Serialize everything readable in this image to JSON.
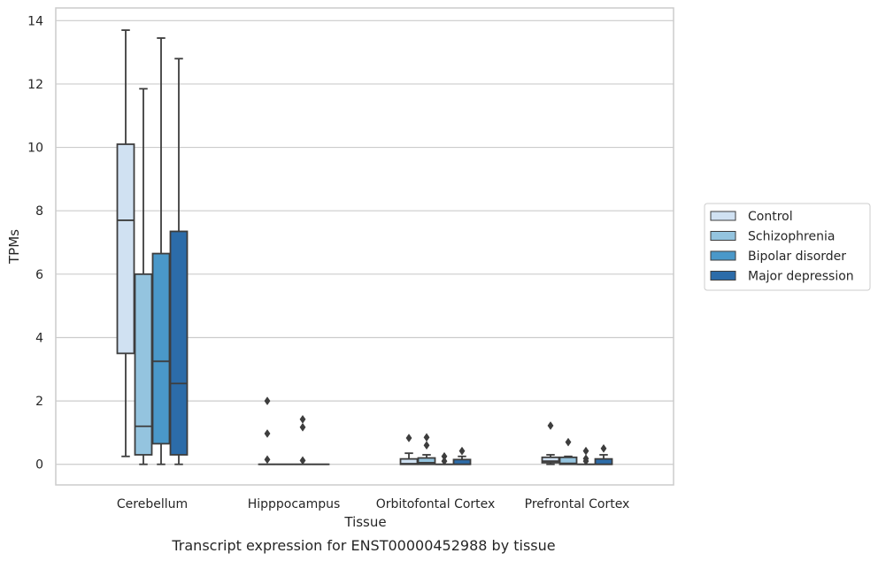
{
  "chart_data": {
    "type": "box",
    "title": "",
    "caption": "Transcript expression for ENST00000452988 by tissue",
    "xlabel": "Tissue",
    "ylabel": "TPMs",
    "ylim": [
      -0.65,
      14.4
    ],
    "yticks": [
      0,
      2,
      4,
      6,
      8,
      10,
      12,
      14
    ],
    "grid": "horizontal",
    "legend_position": "right",
    "categories": [
      "Cerebellum",
      "Hipppocampus",
      "Orbitofontal Cortex",
      "Prefrontal Cortex"
    ],
    "series": [
      {
        "name": "Control",
        "color": "#d0e1f2",
        "boxes": [
          {
            "whislo": 0.25,
            "q1": 3.5,
            "med": 7.7,
            "q3": 10.1,
            "whishi": 13.7,
            "fliers": []
          },
          {
            "whislo": 0,
            "q1": 0,
            "med": 0,
            "q3": 0,
            "whishi": 0,
            "fliers": [
              0.15,
              0.97,
              2.0
            ]
          },
          {
            "whislo": 0,
            "q1": 0,
            "med": 0.02,
            "q3": 0.17,
            "whishi": 0.35,
            "fliers": [
              0.83
            ]
          },
          {
            "whislo": 0,
            "q1": 0.05,
            "med": 0.1,
            "q3": 0.22,
            "whishi": 0.3,
            "fliers": [
              1.22
            ]
          }
        ]
      },
      {
        "name": "Schizophrenia",
        "color": "#94c4df",
        "boxes": [
          {
            "whislo": 0,
            "q1": 0.3,
            "med": 1.2,
            "q3": 6.0,
            "whishi": 11.85,
            "fliers": []
          },
          {
            "whislo": 0,
            "q1": 0,
            "med": 0,
            "q3": 0,
            "whishi": 0,
            "fliers": []
          },
          {
            "whislo": 0,
            "q1": 0,
            "med": 0.05,
            "q3": 0.2,
            "whishi": 0.3,
            "fliers": [
              0.6,
              0.85
            ]
          },
          {
            "whislo": 0,
            "q1": 0,
            "med": 0.03,
            "q3": 0.22,
            "whishi": 0.25,
            "fliers": [
              0.7
            ]
          }
        ]
      },
      {
        "name": "Bipolar disorder",
        "color": "#4a98c9",
        "boxes": [
          {
            "whislo": 0,
            "q1": 0.65,
            "med": 3.25,
            "q3": 6.65,
            "whishi": 13.45,
            "fliers": []
          },
          {
            "whislo": 0,
            "q1": 0,
            "med": 0,
            "q3": 0,
            "whishi": 0,
            "fliers": [
              0.12,
              1.17,
              1.42
            ]
          },
          {
            "whislo": 0,
            "q1": 0,
            "med": 0,
            "q3": 0,
            "whishi": 0,
            "fliers": [
              0.1,
              0.25
            ]
          },
          {
            "whislo": 0,
            "q1": 0,
            "med": 0,
            "q3": 0,
            "whishi": 0,
            "fliers": [
              0.1,
              0.18,
              0.42
            ]
          }
        ]
      },
      {
        "name": "Major depression",
        "color": "#2c6ca9",
        "boxes": [
          {
            "whislo": 0,
            "q1": 0.3,
            "med": 2.55,
            "q3": 7.35,
            "whishi": 12.8,
            "fliers": []
          },
          {
            "whislo": 0,
            "q1": 0,
            "med": 0,
            "q3": 0,
            "whishi": 0,
            "fliers": []
          },
          {
            "whislo": 0,
            "q1": 0,
            "med": 0,
            "q3": 0.15,
            "whishi": 0.25,
            "fliers": [
              0.42
            ]
          },
          {
            "whislo": 0,
            "q1": 0,
            "med": 0,
            "q3": 0.17,
            "whishi": 0.3,
            "fliers": [
              0.5
            ]
          }
        ]
      }
    ]
  }
}
